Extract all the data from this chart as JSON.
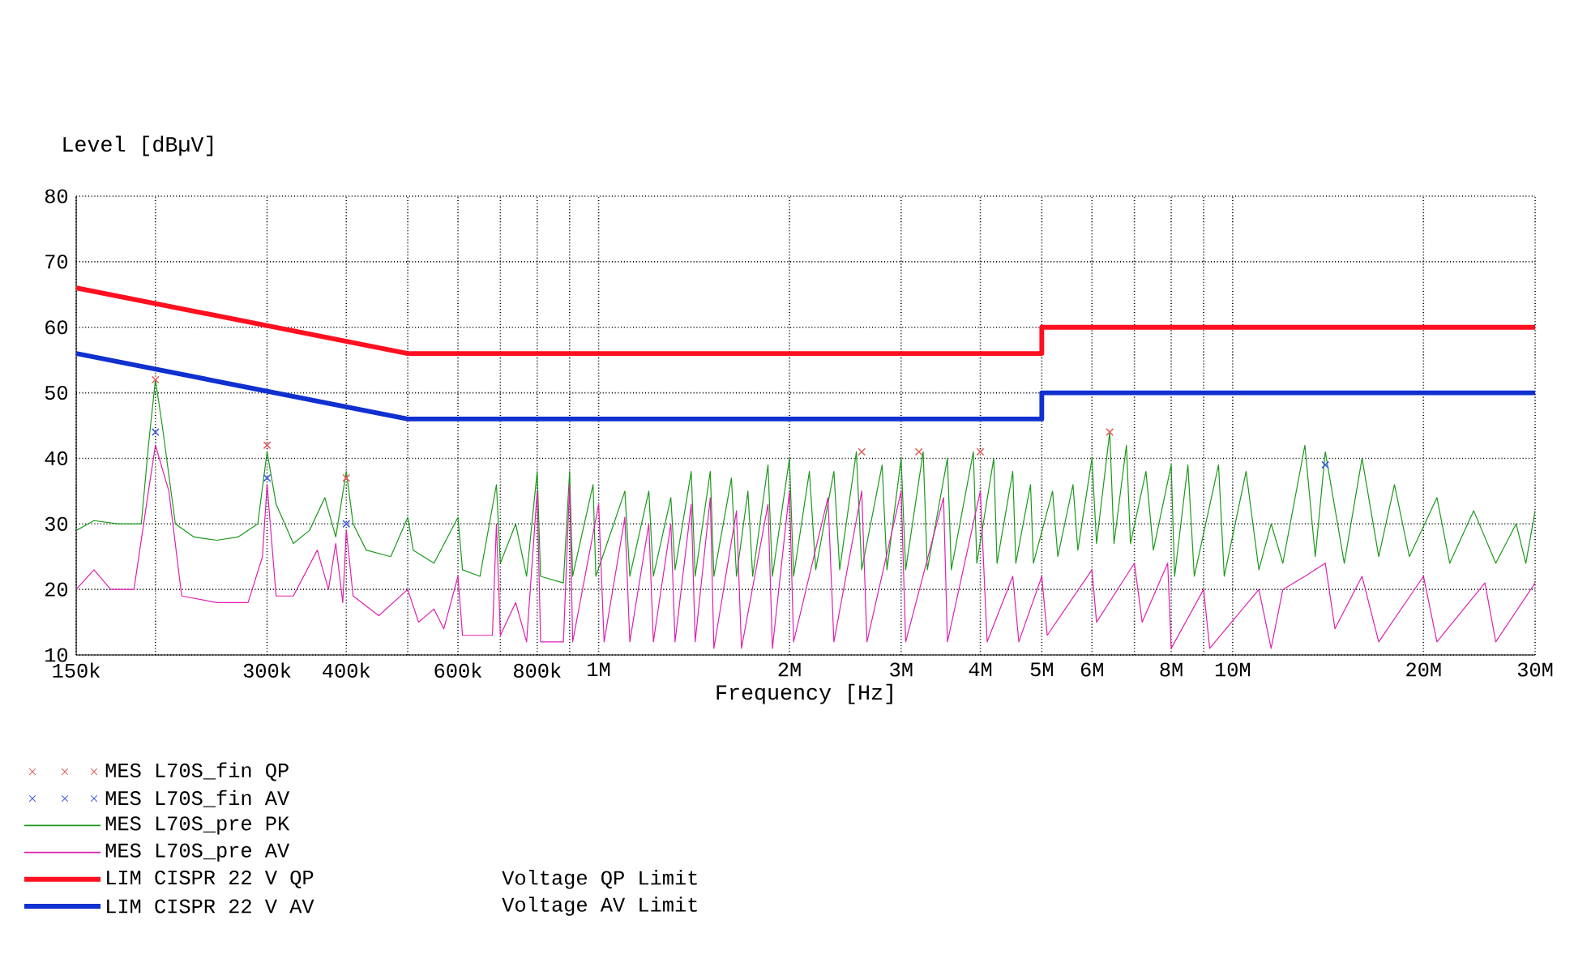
{
  "chart_data": {
    "type": "line",
    "xlabel": "Frequency [Hz]",
    "ylabel": "Level [dBµV]",
    "log": "x",
    "grid": true,
    "legend": "bottom",
    "xlim": [
      150000,
      30000000
    ],
    "ylim": [
      10,
      80
    ],
    "xticks": [
      {
        "value": 150000,
        "label": "150k"
      },
      {
        "value": 200000,
        "label": null
      },
      {
        "value": 300000,
        "label": "300k"
      },
      {
        "value": 400000,
        "label": "400k"
      },
      {
        "value": 500000,
        "label": null
      },
      {
        "value": 600000,
        "label": "600k"
      },
      {
        "value": 700000,
        "label": null
      },
      {
        "value": 800000,
        "label": "800k"
      },
      {
        "value": 900000,
        "label": null
      },
      {
        "value": 1000000,
        "label": "1M"
      },
      {
        "value": 2000000,
        "label": "2M"
      },
      {
        "value": 3000000,
        "label": "3M"
      },
      {
        "value": 4000000,
        "label": "4M"
      },
      {
        "value": 5000000,
        "label": "5M"
      },
      {
        "value": 6000000,
        "label": "6M"
      },
      {
        "value": 7000000,
        "label": null
      },
      {
        "value": 8000000,
        "label": "8M"
      },
      {
        "value": 9000000,
        "label": null
      },
      {
        "value": 10000000,
        "label": "10M"
      },
      {
        "value": 20000000,
        "label": "20M"
      },
      {
        "value": 30000000,
        "label": "30M"
      }
    ],
    "yticks": [
      10,
      20,
      30,
      40,
      50,
      60,
      70,
      80
    ],
    "series": [
      {
        "name": "MES L70S_fin QP",
        "type": "scatter",
        "marker": "cross",
        "color": "#e06060",
        "x": [
          200000,
          300000,
          400000,
          2600000,
          3200000,
          4000000,
          6400000
        ],
        "values": [
          52,
          42,
          37,
          41,
          41,
          41,
          44
        ]
      },
      {
        "name": "MES L70S_fin AV",
        "type": "scatter",
        "marker": "cross",
        "color": "#4060e0",
        "x": [
          200000,
          300000,
          400000,
          14000000
        ],
        "values": [
          44,
          37,
          30,
          39
        ]
      },
      {
        "name": "MES L70S_pre PK",
        "color": "#1a9a1a",
        "x": [
          150000,
          160000,
          175000,
          190000,
          195000,
          200000,
          205000,
          215000,
          230000,
          250000,
          270000,
          290000,
          300000,
          310000,
          330000,
          350000,
          370000,
          385000,
          400000,
          410000,
          430000,
          470000,
          500000,
          510000,
          550000,
          600000,
          610000,
          650000,
          690000,
          700000,
          740000,
          770000,
          800000,
          810000,
          880000,
          900000,
          910000,
          980000,
          990000,
          1100000,
          1120000,
          1200000,
          1220000,
          1300000,
          1320000,
          1400000,
          1420000,
          1500000,
          1520000,
          1620000,
          1650000,
          1720000,
          1750000,
          1850000,
          1880000,
          2000000,
          2030000,
          2150000,
          2200000,
          2350000,
          2400000,
          2550000,
          2600000,
          2800000,
          2850000,
          3000000,
          3050000,
          3250000,
          3300000,
          3550000,
          3600000,
          3900000,
          3950000,
          4200000,
          4250000,
          4500000,
          4550000,
          4800000,
          4850000,
          5200000,
          5300000,
          5600000,
          5700000,
          6000000,
          6100000,
          6400000,
          6500000,
          6800000,
          6900000,
          7300000,
          7500000,
          8000000,
          8100000,
          8500000,
          8700000,
          9500000,
          9700000,
          10500000,
          11000000,
          11500000,
          12000000,
          13000000,
          13500000,
          14000000,
          15000000,
          16000000,
          17000000,
          18000000,
          19000000,
          21000000,
          22000000,
          24000000,
          26000000,
          28000000,
          29000000,
          30000000
        ],
        "values": [
          29,
          30.5,
          30,
          30,
          42,
          52,
          45,
          30,
          28,
          27.5,
          28,
          30,
          41,
          33,
          27,
          29,
          34,
          28,
          38,
          30,
          26,
          25,
          31,
          26,
          24,
          31,
          23,
          22,
          36,
          24,
          30,
          22,
          38,
          22,
          21,
          38,
          22,
          36,
          22,
          35,
          22,
          35,
          22,
          34,
          23,
          38,
          22,
          38,
          22,
          37,
          22,
          35,
          22,
          39,
          22,
          40,
          22,
          38,
          23,
          38,
          23,
          41,
          23,
          39,
          23,
          40,
          23,
          41,
          23,
          40,
          23,
          41,
          24,
          40,
          24,
          38,
          24,
          36,
          24,
          35,
          25,
          36,
          26,
          40,
          27,
          44,
          27,
          42,
          27,
          38,
          26,
          39,
          22,
          39,
          22,
          39,
          22,
          38,
          23,
          30,
          24,
          42,
          25,
          41,
          24,
          40,
          25,
          36,
          25,
          34,
          24,
          32,
          24,
          30,
          24,
          32
        ]
      },
      {
        "name": "MES L70S_pre AV",
        "color": "#e020b0",
        "x": [
          150000,
          160000,
          170000,
          185000,
          195000,
          200000,
          210000,
          220000,
          250000,
          280000,
          295000,
          300000,
          310000,
          330000,
          360000,
          375000,
          385000,
          395000,
          400000,
          410000,
          450000,
          500000,
          520000,
          550000,
          570000,
          600000,
          610000,
          680000,
          690000,
          700000,
          740000,
          770000,
          800000,
          810000,
          880000,
          900000,
          910000,
          1000000,
          1020000,
          1100000,
          1120000,
          1200000,
          1220000,
          1300000,
          1320000,
          1400000,
          1420000,
          1500000,
          1520000,
          1650000,
          1680000,
          1850000,
          1880000,
          2000000,
          2030000,
          2300000,
          2350000,
          2600000,
          2650000,
          3000000,
          3050000,
          3500000,
          3550000,
          4000000,
          4100000,
          4500000,
          4600000,
          5000000,
          5100000,
          6000000,
          6100000,
          7000000,
          7200000,
          7900000,
          8000000,
          9000000,
          9200000,
          11000000,
          11500000,
          12000000,
          13000000,
          14000000,
          14500000,
          16000000,
          17000000,
          20000000,
          21000000,
          25000000,
          26000000,
          30000000
        ],
        "values": [
          20,
          23,
          20,
          20,
          35,
          42,
          35,
          19,
          18,
          18,
          25,
          36,
          19,
          19,
          26,
          20,
          27,
          18,
          29,
          19,
          16,
          20,
          15,
          17,
          14,
          22,
          13,
          13,
          30,
          13,
          18,
          12,
          35,
          12,
          12,
          36,
          12,
          33,
          12,
          31,
          12,
          30,
          12,
          30,
          12,
          33,
          12,
          34,
          11,
          32,
          11,
          33,
          11,
          35,
          12,
          34,
          12,
          35,
          12,
          35,
          12,
          34,
          12,
          35,
          12,
          22,
          12,
          22,
          13,
          23,
          15,
          24,
          15,
          24,
          11,
          20,
          11,
          20,
          11,
          20,
          22,
          24,
          14,
          22,
          12,
          22,
          12,
          21,
          12,
          21
        ]
      },
      {
        "name": "LIM CISPR 22 V QP",
        "color": "#ff1020",
        "x": [
          150000,
          500000,
          5000000,
          5000000,
          30000000
        ],
        "values": [
          66,
          56,
          56,
          60,
          60
        ]
      },
      {
        "name": "LIM CISPR 22 V AV",
        "color": "#1030d0",
        "x": [
          150000,
          500000,
          5000000,
          5000000,
          30000000
        ],
        "values": [
          56,
          46,
          46,
          50,
          50
        ]
      }
    ],
    "annotations": [
      "Voltage QP Limit",
      "Voltage AV Limit"
    ]
  }
}
